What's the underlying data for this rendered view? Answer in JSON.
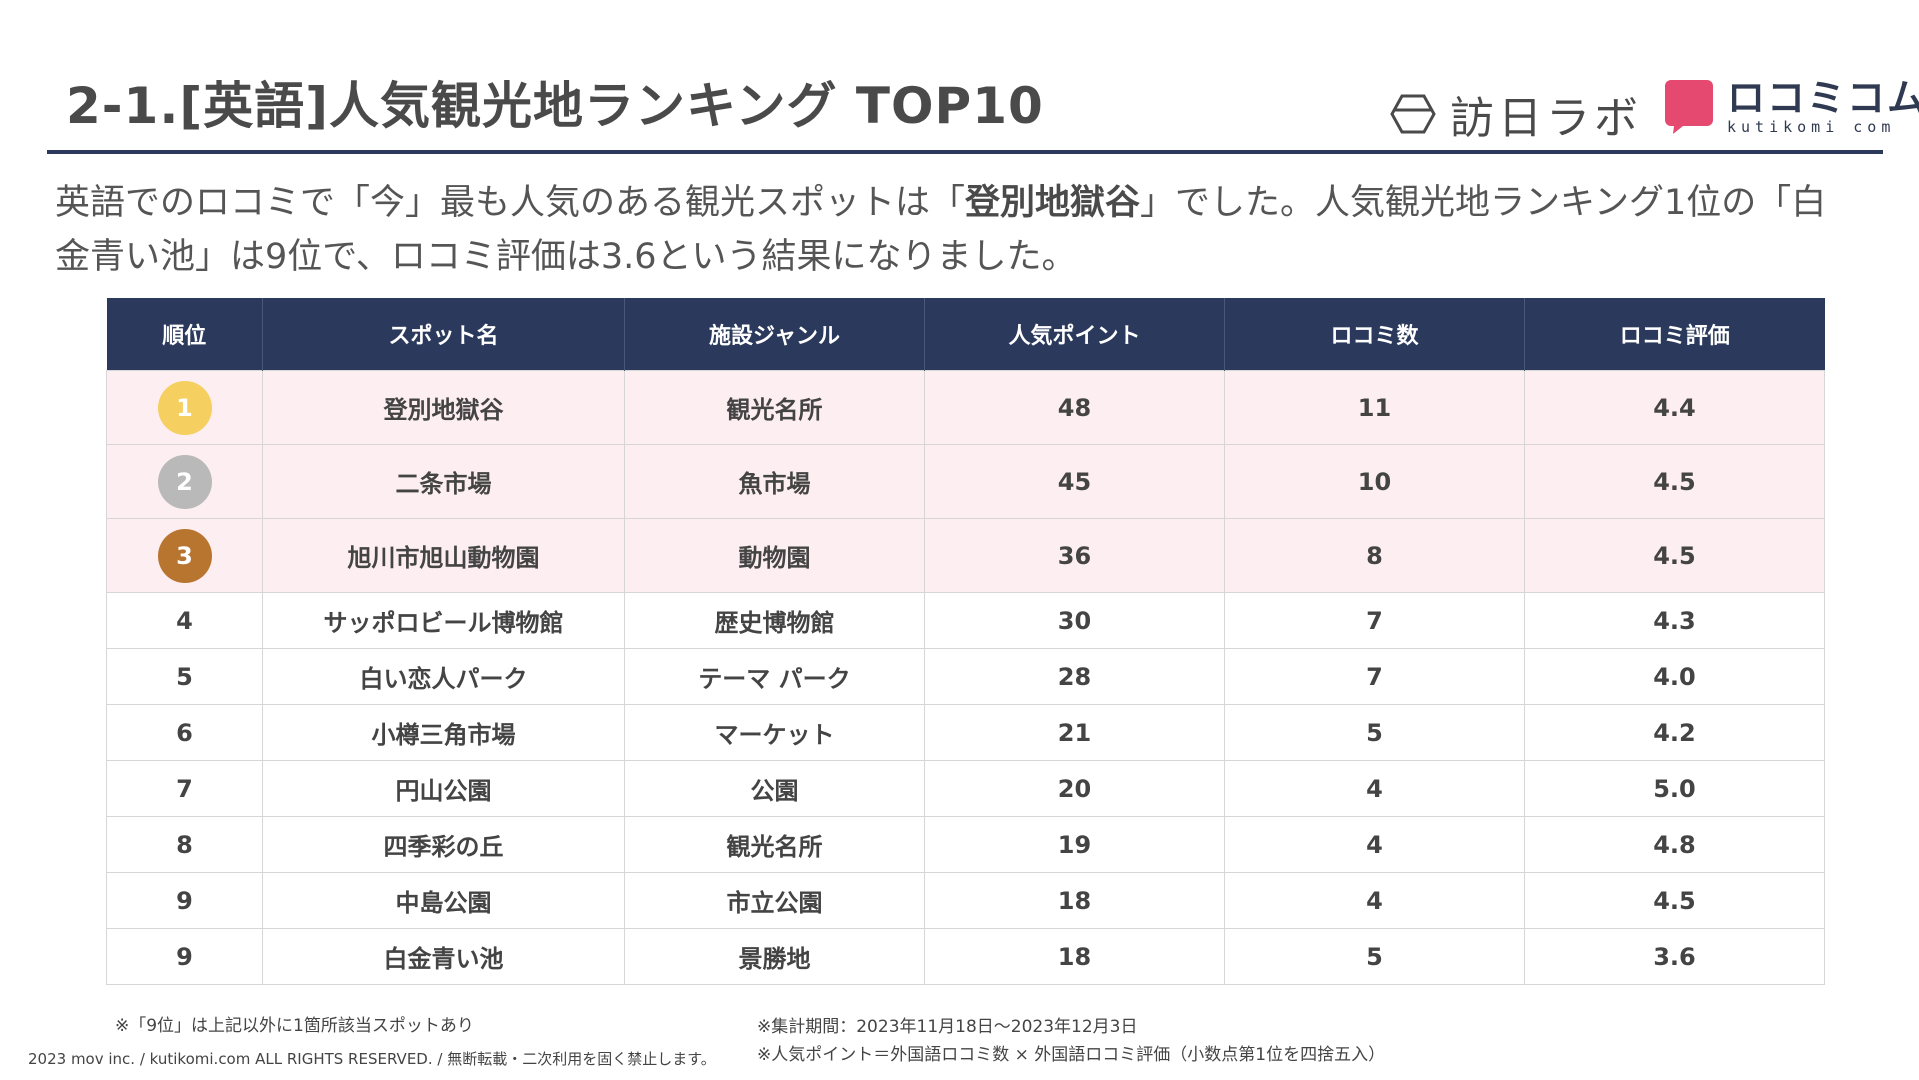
{
  "header": {
    "title": "2-1.[英語]人気観光地ランキング TOP10",
    "logo_hinichi": "訪日ラボ",
    "logo_kutikomi_main": "ロコミコム",
    "logo_kutikomi_sub": "kutikomi com"
  },
  "lead": {
    "part1": "英語でのロコミで「今」最も人気のある観光スポットは「",
    "highlight": "登別地獄谷",
    "part2": "」でした。人気観光地ランキング1位の「白金青い池」は9位で、ロコミ評価は3.6という結果になりました。"
  },
  "table": {
    "headers": [
      "順位",
      "スポット名",
      "施設ジャンル",
      "人気ポイント",
      "ロコミ数",
      "ロコミ評価"
    ],
    "rows": [
      {
        "rank": "1",
        "spot": "登別地獄谷",
        "genre": "観光名所",
        "points": "48",
        "reviews": "11",
        "rating": "4.4"
      },
      {
        "rank": "2",
        "spot": "二条市場",
        "genre": "魚市場",
        "points": "45",
        "reviews": "10",
        "rating": "4.5"
      },
      {
        "rank": "3",
        "spot": "旭川市旭山動物園",
        "genre": "動物園",
        "points": "36",
        "reviews": "8",
        "rating": "4.5"
      },
      {
        "rank": "4",
        "spot": "サッポロビール博物館",
        "genre": "歴史博物館",
        "points": "30",
        "reviews": "7",
        "rating": "4.3"
      },
      {
        "rank": "5",
        "spot": "白い恋人パーク",
        "genre": "テーマ パーク",
        "points": "28",
        "reviews": "7",
        "rating": "4.0"
      },
      {
        "rank": "6",
        "spot": "小樽三角市場",
        "genre": "マーケット",
        "points": "21",
        "reviews": "5",
        "rating": "4.2"
      },
      {
        "rank": "7",
        "spot": "円山公園",
        "genre": "公園",
        "points": "20",
        "reviews": "4",
        "rating": "5.0"
      },
      {
        "rank": "8",
        "spot": "四季彩の丘",
        "genre": "観光名所",
        "points": "19",
        "reviews": "4",
        "rating": "4.8"
      },
      {
        "rank": "9",
        "spot": "中島公園",
        "genre": "市立公園",
        "points": "18",
        "reviews": "4",
        "rating": "4.5"
      },
      {
        "rank": "9",
        "spot": "白金青い池",
        "genre": "景勝地",
        "points": "18",
        "reviews": "5",
        "rating": "3.6"
      }
    ]
  },
  "medal_colors": {
    "gold": "#f5cf5f",
    "silver": "#b9b9b9",
    "bronze": "#b87530"
  },
  "colors": {
    "header_bg": "#2b3a5c",
    "podium_bg": "#fdeef2",
    "brand_pink": "#e5496f"
  },
  "notes": {
    "left": "※「9位」は上記以外に1箇所該当スポットあり",
    "period": "※集計期間：2023年11月18日〜2023年12月3日",
    "formula": "※人気ポイント＝外国語ロコミ数 × 外国語ロコミ評価（小数点第1位を四捨五入）",
    "copyright": "2023 mov inc. / kutikomi.com ALL RIGHTS RESERVED. / 無断転載・二次利用を固く禁止します。"
  }
}
